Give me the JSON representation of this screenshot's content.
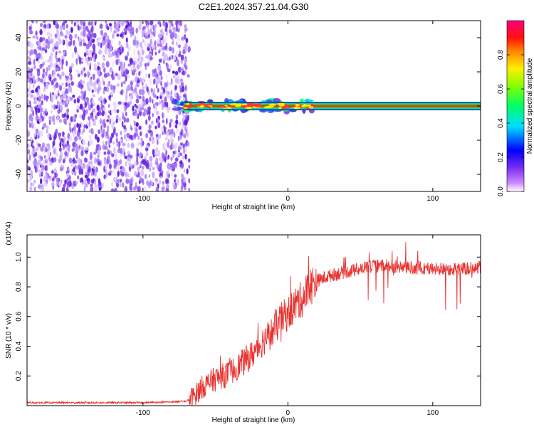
{
  "figure": {
    "title": "C2E1.2024.357.21.04.G30"
  },
  "colors": {
    "trace": "#e8322f",
    "noise_purple": "#7a3ef0",
    "band_red": "#e8322f",
    "band_green": "#2ee02e",
    "frame": "#000000"
  },
  "chart_data": [
    {
      "type": "heatmap",
      "title": "",
      "xlabel": "Height of straight line (km)",
      "ylabel": "Frequency (Hz)",
      "xlim": [
        -180,
        133
      ],
      "ylim": [
        -50,
        50
      ],
      "x_ticks": [
        -100,
        0,
        100
      ],
      "y_ticks": [
        -40,
        -20,
        0,
        20,
        40
      ],
      "grid": false,
      "colorbar": {
        "label": "Normalized spectral amplitude",
        "range": [
          0.0,
          1.0
        ],
        "ticks": [
          0.0,
          0.2,
          0.4,
          0.6,
          0.8
        ],
        "colormap": [
          "#9900ff",
          "#0000ff",
          "#00ffff",
          "#00ff00",
          "#ffff00",
          "#ff8000",
          "#ff0000",
          "#ff0099"
        ]
      },
      "regions": [
        {
          "description": "broadband noise",
          "x_range": [
            -180,
            -70
          ],
          "freq_range": [
            -50,
            50
          ],
          "amplitude_range": [
            0.0,
            0.2
          ]
        },
        {
          "description": "narrow carrier band",
          "x_range": [
            -70,
            133
          ],
          "center_freq": 0,
          "amplitude": 1.0
        }
      ]
    },
    {
      "type": "line",
      "title": "",
      "xlabel": "Height of straight line (km)",
      "ylabel": "SNR (10 * v/v)",
      "y_multiplier": "(x10^4)",
      "xlim": [
        -180,
        133
      ],
      "ylim": [
        0,
        1.15
      ],
      "x_ticks": [
        -100,
        0,
        100
      ],
      "y_ticks": [
        0.2,
        0.4,
        0.6,
        0.8,
        1.0
      ],
      "grid": false,
      "series": [
        {
          "x": [
            -180,
            -140,
            -100,
            -80,
            -70,
            -65,
            -60,
            -55,
            -50,
            -45,
            -40,
            -35,
            -30,
            -25,
            -20,
            -15,
            -10,
            -5,
            0,
            5,
            10,
            15,
            20,
            25,
            30,
            40,
            50,
            60,
            70,
            80,
            90,
            100,
            110,
            120,
            133
          ],
          "values": [
            0.02,
            0.02,
            0.02,
            0.025,
            0.03,
            0.06,
            0.12,
            0.15,
            0.18,
            0.2,
            0.22,
            0.26,
            0.3,
            0.34,
            0.4,
            0.46,
            0.5,
            0.58,
            0.62,
            0.68,
            0.72,
            0.8,
            0.84,
            0.86,
            0.88,
            0.9,
            0.92,
            0.94,
            0.94,
            0.93,
            0.93,
            0.92,
            0.92,
            0.92,
            0.93
          ]
        }
      ]
    }
  ]
}
